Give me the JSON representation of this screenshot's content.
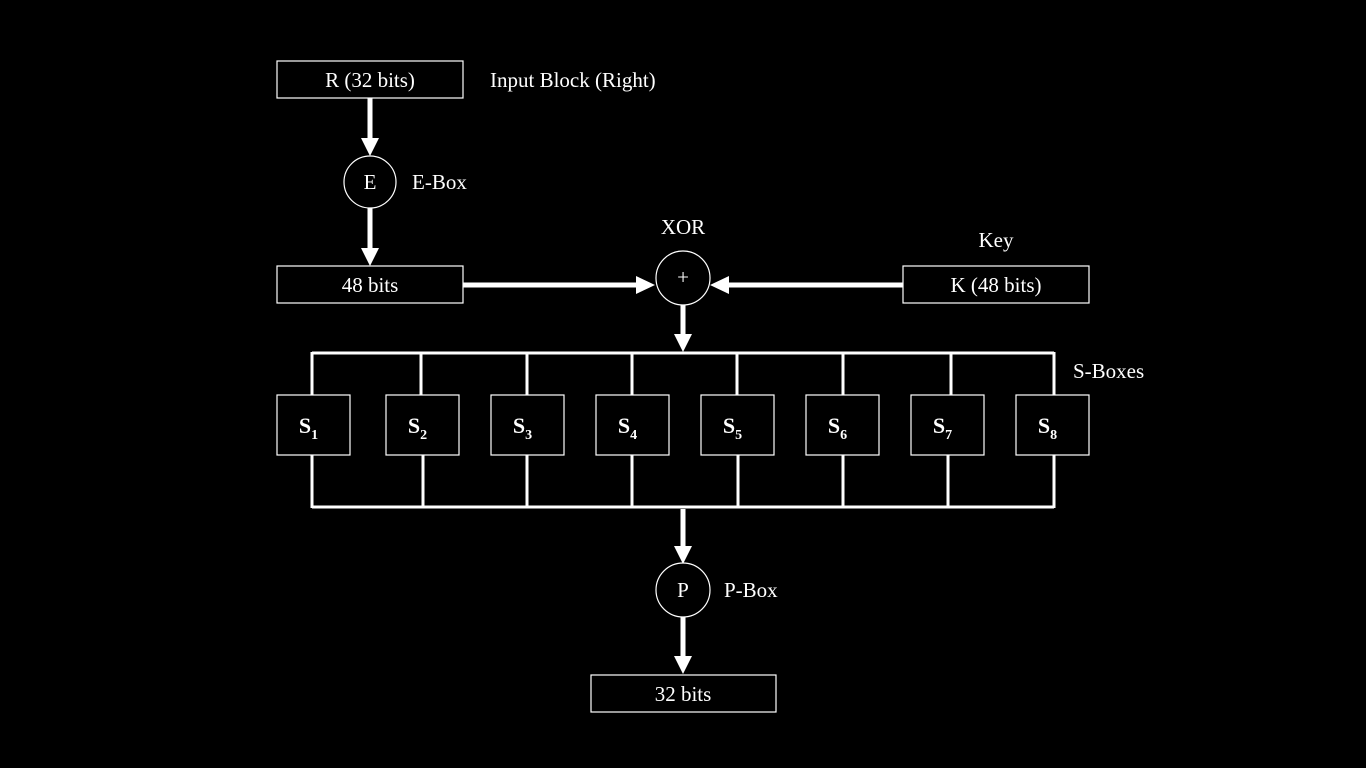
{
  "input_block": {
    "box_label": "R (32 bits)",
    "caption": "Input Block (Right)"
  },
  "e_box": {
    "symbol": "E",
    "caption": "E-Box"
  },
  "expanded": {
    "box_label": "48 bits"
  },
  "xor": {
    "caption": "XOR",
    "symbol": "+"
  },
  "key": {
    "caption": "Key",
    "box_label": "K (48 bits)"
  },
  "s_boxes": {
    "caption": "S-Boxes",
    "items": [
      {
        "letter": "S",
        "index": "1"
      },
      {
        "letter": "S",
        "index": "2"
      },
      {
        "letter": "S",
        "index": "3"
      },
      {
        "letter": "S",
        "index": "4"
      },
      {
        "letter": "S",
        "index": "5"
      },
      {
        "letter": "S",
        "index": "6"
      },
      {
        "letter": "S",
        "index": "7"
      },
      {
        "letter": "S",
        "index": "8"
      }
    ]
  },
  "p_box": {
    "symbol": "P",
    "caption": "P-Box"
  },
  "output": {
    "box_label": "32 bits"
  }
}
